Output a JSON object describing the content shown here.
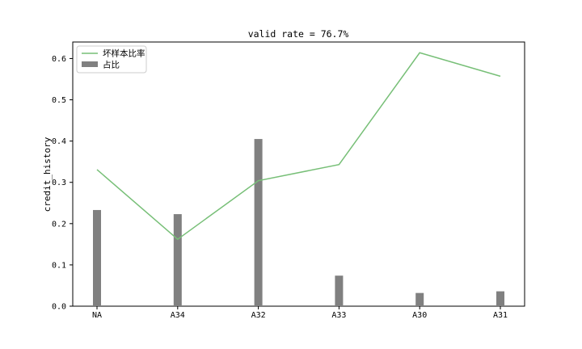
{
  "chart_data": {
    "type": "bar+line",
    "title": "valid rate = 76.7%",
    "xlabel": "",
    "ylabel": "credit_history",
    "categories": [
      "NA",
      "A34",
      "A32",
      "A33",
      "A30",
      "A31"
    ],
    "ylim": [
      0,
      0.64
    ],
    "yticks": [
      0.0,
      0.1,
      0.2,
      0.3,
      0.4,
      0.5,
      0.6
    ],
    "ytick_labels": [
      "0.0",
      "0.1",
      "0.2",
      "0.3",
      "0.4",
      "0.5",
      "0.6"
    ],
    "series": [
      {
        "name": "占比",
        "kind": "bar",
        "color": "#808080",
        "values": [
          0.233,
          0.223,
          0.405,
          0.074,
          0.032,
          0.036
        ]
      },
      {
        "name": "坏样本比率",
        "kind": "line",
        "color": "#77bf77",
        "values": [
          0.331,
          0.162,
          0.304,
          0.343,
          0.614,
          0.557
        ]
      }
    ],
    "legend": {
      "placement": "top-left"
    },
    "grid": false
  }
}
